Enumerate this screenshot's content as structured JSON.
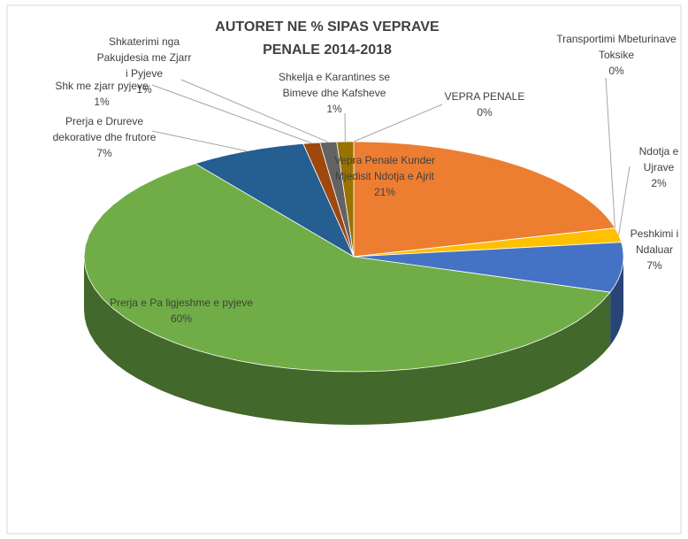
{
  "chart_data": {
    "type": "pie",
    "title": "AUTORET NE % SIPAS VEPRAVE PENALE 2014-2018",
    "categories": [
      "VEPRA PENALE",
      "Vepra Penale Kunder Mjedisit Ndotja e Ajrit",
      "Transportimi Mbeturinave Toksike",
      "Ndotja e Ujrave",
      "Peshkimi i Ndaluar",
      "Prerja e Pa ligjeshme e pyjeve",
      "Prerja e Drureve dekorative dhe frutore",
      "Shk me zjarr pyjeve",
      "Shkaterimi nga Pakujdesia me Zjarr i Pyjeve",
      "Shkelja e Karantines se Bimeve dhe Kafsheve"
    ],
    "values": [
      0,
      21,
      0,
      2,
      7,
      60,
      7,
      1,
      1,
      1
    ],
    "value_labels": [
      "0%",
      "21%",
      "0%",
      "2%",
      "7%",
      "60%",
      "7%",
      "1%",
      "1%",
      "1%"
    ],
    "colors": [
      "#5b9bd5",
      "#ed7d31",
      "#a5a5a5",
      "#ffc000",
      "#4472c4",
      "#70ad47",
      "#255e91",
      "#9e480e",
      "#636363",
      "#997300"
    ]
  }
}
